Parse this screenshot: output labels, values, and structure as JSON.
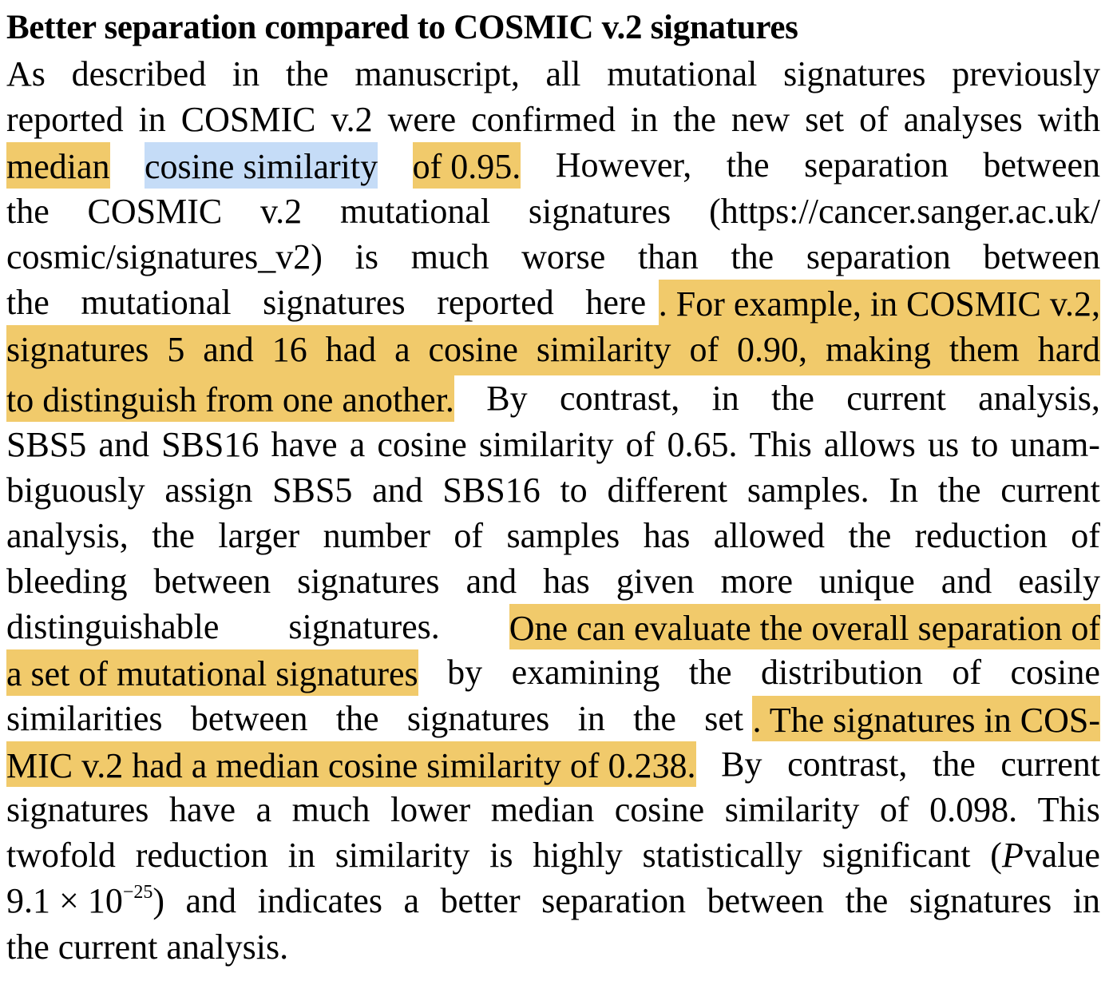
{
  "heading": "Better separation compared to COSMIC v.2 signatures",
  "highlight_colors": {
    "yellow": "#f1ca6b",
    "blue": "#c5dcf7"
  },
  "lines": [
    {
      "w": [
        "As",
        "described",
        "in",
        "the",
        "manuscript,",
        "all",
        "mutational",
        "signatures",
        "previously"
      ]
    },
    {
      "w": [
        "reported",
        "in",
        "COSMIC",
        "v.2",
        "were",
        "confirmed",
        "in",
        "the",
        "new",
        "set",
        "of",
        "analyses",
        "with"
      ]
    },
    {
      "w": [
        "median",
        "cosine similarity",
        "of 0.95.",
        "However,",
        "the",
        "separation",
        "between"
      ]
    },
    {
      "w": [
        "the",
        "COSMIC",
        "v.2",
        "mutational",
        "signatures",
        "(https://cancer.sanger.ac.uk/"
      ]
    },
    {
      "w": [
        "cosmic/signatures_v2)",
        "is",
        "much",
        "worse",
        "than",
        "the",
        "separation",
        "between"
      ]
    },
    {
      "w": [
        "the",
        "mutational",
        "signatures",
        "reported",
        "here",
        ". For example, in COSMIC v.2,"
      ]
    },
    {
      "w": [
        "signatures",
        "5",
        "and",
        "16",
        "had",
        "a",
        "cosine",
        "similarity",
        "of",
        "0.90,",
        "making",
        "them",
        "hard"
      ]
    },
    {
      "w": [
        "to distinguish from one another.",
        "By",
        "contrast,",
        "in",
        "the",
        "current",
        "analysis,"
      ]
    },
    {
      "w": [
        "SBS5",
        "and",
        "SBS16",
        "have",
        "a",
        "cosine",
        "similarity",
        "of",
        "0.65.",
        "This",
        "allows",
        "us",
        "to",
        "unam-"
      ]
    },
    {
      "w": [
        "biguously",
        "assign",
        "SBS5",
        "and",
        "SBS16",
        "to",
        "different",
        "samples.",
        "In",
        "the",
        "current"
      ]
    },
    {
      "w": [
        "analysis,",
        "the",
        "larger",
        "number",
        "of",
        "samples",
        "has",
        "allowed",
        "the",
        "reduction",
        "of"
      ]
    },
    {
      "w": [
        "bleeding",
        "between",
        "signatures",
        "and",
        "has",
        "given",
        "more",
        "unique",
        "and",
        "easily"
      ]
    },
    {
      "w": [
        "distinguishable",
        "signatures.",
        "One can evaluate the overall separation of"
      ]
    },
    {
      "w": [
        "a set of mutational signatures",
        "by",
        "examining",
        "the",
        "distribution",
        "of",
        "cosine"
      ]
    },
    {
      "w": [
        "similarities",
        "between",
        "the",
        "signatures",
        "in",
        "the",
        "set",
        ". The signatures in COS-"
      ]
    },
    {
      "w": [
        "MIC v.2 had a median cosine similarity of 0.238.",
        "By",
        "contrast,",
        "the",
        "current"
      ]
    },
    {
      "w": [
        "signatures",
        "have",
        "a",
        "much",
        "lower",
        "median",
        "cosine",
        "similarity",
        "of",
        "0.098.",
        "This"
      ]
    },
    {
      "w": [
        "twofold",
        "reduction",
        "in",
        "similarity",
        "is",
        "highly",
        "statistically",
        "significant",
        "(",
        "P",
        "value"
      ]
    },
    {
      "w": [
        "9.1 × 10",
        "−25",
        ")",
        "and",
        "indicates",
        "a",
        "better",
        "separation",
        "between",
        "the",
        "signatures",
        "in"
      ]
    },
    {
      "w": [
        "the",
        "current",
        "analysis."
      ]
    }
  ]
}
